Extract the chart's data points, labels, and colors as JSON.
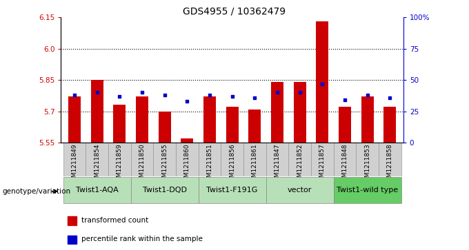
{
  "title": "GDS4955 / 10362479",
  "samples": [
    "GSM1211849",
    "GSM1211854",
    "GSM1211859",
    "GSM1211850",
    "GSM1211855",
    "GSM1211860",
    "GSM1211851",
    "GSM1211856",
    "GSM1211861",
    "GSM1211847",
    "GSM1211852",
    "GSM1211857",
    "GSM1211848",
    "GSM1211853",
    "GSM1211858"
  ],
  "bar_values": [
    5.77,
    5.85,
    5.73,
    5.77,
    5.7,
    5.57,
    5.77,
    5.72,
    5.71,
    5.84,
    5.84,
    6.13,
    5.72,
    5.77,
    5.72
  ],
  "dot_values": [
    38,
    40,
    37,
    40,
    38,
    33,
    38,
    37,
    36,
    40,
    40,
    47,
    34,
    38,
    36
  ],
  "ylim_left": [
    5.55,
    6.15
  ],
  "ylim_right": [
    0,
    100
  ],
  "yticks_left": [
    5.55,
    5.7,
    5.85,
    6.0,
    6.15
  ],
  "yticks_right": [
    0,
    25,
    50,
    75,
    100
  ],
  "ytick_labels_right": [
    "0",
    "25",
    "50",
    "75",
    "100%"
  ],
  "hlines": [
    5.7,
    5.85,
    6.0
  ],
  "bar_color": "#cc0000",
  "dot_color": "#0000cc",
  "bar_bottom": 5.55,
  "groups": [
    {
      "label": "Twist1-AQA",
      "start": 0,
      "end": 2,
      "color": "#b8e0b8"
    },
    {
      "label": "Twist1-DQD",
      "start": 3,
      "end": 5,
      "color": "#b8e0b8"
    },
    {
      "label": "Twist1-F191G",
      "start": 6,
      "end": 8,
      "color": "#b8e0b8"
    },
    {
      "label": "vector",
      "start": 9,
      "end": 11,
      "color": "#b8e0b8"
    },
    {
      "label": "Twist1-wild type",
      "start": 12,
      "end": 14,
      "color": "#66cc66"
    }
  ],
  "genotype_label": "genotype/variation",
  "legend_items": [
    {
      "label": "transformed count",
      "color": "#cc0000"
    },
    {
      "label": "percentile rank within the sample",
      "color": "#0000cc"
    }
  ],
  "sample_bg_color": "#d0d0d0",
  "left_tick_color": "#cc0000",
  "right_tick_color": "#0000cc",
  "title_fontsize": 10,
  "tick_fontsize": 7.5,
  "sample_fontsize": 6.5,
  "group_fontsize": 8
}
